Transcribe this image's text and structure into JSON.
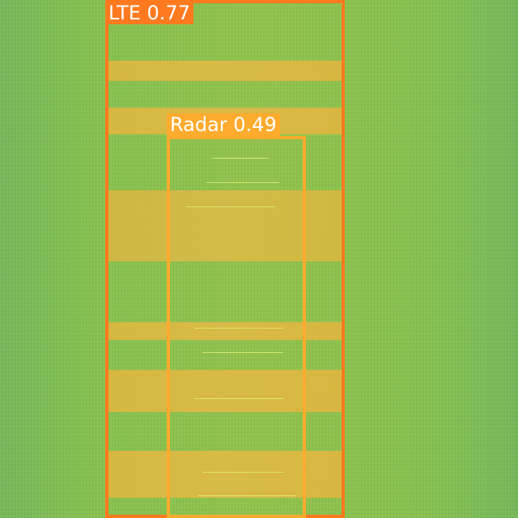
{
  "detections": [
    {
      "label": "LTE 0.77",
      "color": "#ff7a1f"
    },
    {
      "label": "Radar 0.49",
      "color": "#ffab2d"
    }
  ],
  "background": {
    "kind": "spectrogram",
    "base_color": "#86c24f",
    "band_color": "#e9b75a"
  }
}
